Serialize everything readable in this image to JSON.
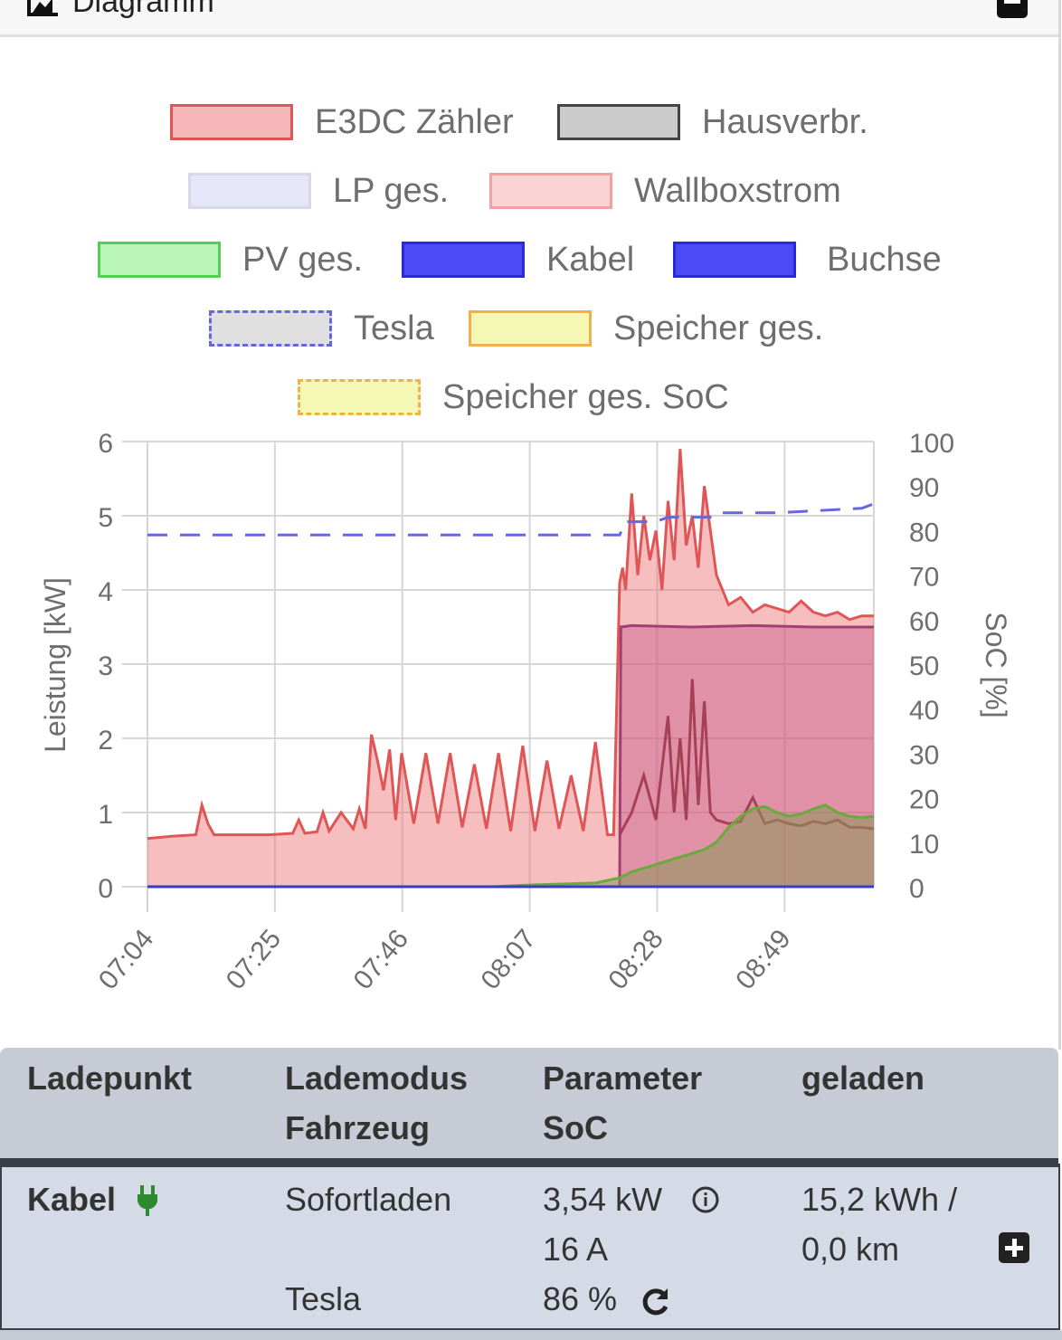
{
  "header": {
    "title": "Diagramm",
    "icon": "chart-icon",
    "collapse_icon": "minus-square-icon"
  },
  "legend": [
    {
      "label": "E3DC Zähler",
      "fill": "#f4b6b6",
      "stroke": "#e05555",
      "dashed": false
    },
    {
      "label": "Hausverbr.",
      "fill": "#cccccc",
      "stroke": "#444444",
      "dashed": false
    },
    {
      "label": "LP ges.",
      "fill": "#e6e6fa",
      "stroke": "#d8d8e8",
      "dashed": false
    },
    {
      "label": "Wallboxstrom",
      "fill": "#f8d4d4",
      "stroke": "#f2a0a0",
      "dashed": false
    },
    {
      "label": "PV ges.",
      "fill": "#b9f5b9",
      "stroke": "#55cc55",
      "dashed": false
    },
    {
      "label": "Kabel",
      "fill": "#4a4af7",
      "stroke": "#2a2ad0",
      "dashed": false
    },
    {
      "label": "Buchse",
      "fill": "#4a4af7",
      "stroke": "#2a2ad0",
      "dashed": false
    },
    {
      "label": "Tesla",
      "fill": "#e0e0e0",
      "stroke": "#6666dd",
      "dashed": true
    },
    {
      "label": "Speicher ges.",
      "fill": "#f5f8b5",
      "stroke": "#f0b050",
      "dashed": false
    },
    {
      "label": "Speicher ges. SoC",
      "fill": "#f5f8b5",
      "stroke": "#f0b050",
      "dashed": true
    }
  ],
  "chart_data": {
    "type": "area",
    "ylabel": "Leistung [kW]",
    "y2label": "SoC [%]",
    "ylim": [
      0,
      6
    ],
    "y2lim": [
      0,
      100
    ],
    "yticks": [
      0,
      1,
      2,
      3,
      4,
      5,
      6
    ],
    "y2ticks": [
      0,
      10,
      20,
      30,
      40,
      50,
      60,
      70,
      80,
      90,
      100
    ],
    "xticks": [
      "07:04",
      "07:25",
      "07:46",
      "08:07",
      "08:28",
      "08:49"
    ],
    "xlim": [
      0,
      120
    ],
    "grid": true,
    "series": [
      {
        "name": "E3DC Zähler",
        "axis": "left",
        "color": "#e05555",
        "fill": "rgba(235,110,110,0.45)",
        "x": [
          0,
          4,
          8,
          9,
          10,
          11,
          12,
          16,
          20,
          24,
          25,
          26,
          28,
          29,
          30,
          32,
          34,
          35,
          36,
          37,
          38,
          39,
          40,
          41,
          42,
          44,
          46,
          48,
          50,
          52,
          54,
          56,
          58,
          60,
          62,
          64,
          66,
          68,
          70,
          72,
          74,
          76,
          77,
          78,
          78.5,
          79,
          80,
          81,
          82,
          83,
          84,
          85,
          86,
          87,
          88,
          89,
          90,
          91,
          92,
          94,
          96,
          98,
          100,
          102,
          104,
          106,
          108,
          110,
          112,
          114,
          116,
          118,
          120
        ],
        "y": [
          0.65,
          0.68,
          0.7,
          1.1,
          0.85,
          0.7,
          0.7,
          0.7,
          0.7,
          0.72,
          0.9,
          0.72,
          0.74,
          1.0,
          0.75,
          1.0,
          0.78,
          1.05,
          0.78,
          2.05,
          1.7,
          1.3,
          1.85,
          0.9,
          1.8,
          0.85,
          1.8,
          0.85,
          1.8,
          0.8,
          1.65,
          0.78,
          1.8,
          0.75,
          1.9,
          0.75,
          1.7,
          0.78,
          1.5,
          0.75,
          1.95,
          0.7,
          0.7,
          4.1,
          4.3,
          4.0,
          5.3,
          4.2,
          5.0,
          4.4,
          4.8,
          4.0,
          5.2,
          4.4,
          5.9,
          4.6,
          5.0,
          4.3,
          5.4,
          4.2,
          3.8,
          3.9,
          3.7,
          3.8,
          3.75,
          3.7,
          3.85,
          3.7,
          3.65,
          3.7,
          3.6,
          3.65,
          3.65
        ]
      },
      {
        "name": "Hausverbr.",
        "axis": "left",
        "color": "#8a2a2a",
        "fill": "none",
        "x": [
          78,
          80,
          82,
          84,
          86,
          87,
          88,
          89,
          90,
          91,
          92,
          93,
          94,
          96,
          98,
          100,
          102,
          104,
          106,
          108,
          110,
          112,
          114,
          116,
          118,
          120
        ],
        "y": [
          0.7,
          1.0,
          1.5,
          0.9,
          2.3,
          1.0,
          2.0,
          0.9,
          2.8,
          1.1,
          2.5,
          1.0,
          0.9,
          0.85,
          0.88,
          1.2,
          0.85,
          0.9,
          0.85,
          0.82,
          0.88,
          0.85,
          0.9,
          0.8,
          0.8,
          0.78
        ]
      },
      {
        "name": "Wallboxstrom",
        "axis": "left",
        "color": "#a04070",
        "fill": "rgba(200,90,140,0.45)",
        "x": [
          78,
          78.2,
          80,
          90,
          100,
          110,
          120
        ],
        "y": [
          0,
          3.5,
          3.52,
          3.5,
          3.52,
          3.5,
          3.5
        ]
      },
      {
        "name": "PV ges.",
        "axis": "left",
        "color": "#6aaa3a",
        "fill": "rgba(140,150,90,0.55)",
        "x": [
          57,
          62,
          66,
          70,
          74,
          78,
          80,
          82,
          84,
          86,
          88,
          90,
          92,
          94,
          96,
          98,
          100,
          102,
          104,
          106,
          108,
          110,
          112,
          114,
          116,
          118,
          120
        ],
        "y": [
          0,
          0.02,
          0.03,
          0.04,
          0.05,
          0.12,
          0.2,
          0.25,
          0.3,
          0.35,
          0.4,
          0.45,
          0.5,
          0.6,
          0.8,
          0.95,
          1.05,
          1.08,
          1.0,
          0.95,
          0.98,
          1.05,
          1.1,
          1.0,
          0.95,
          0.93,
          0.95
        ]
      },
      {
        "name": "Tesla",
        "axis": "right",
        "color": "#6666dd",
        "fill": "none",
        "dashed": true,
        "x": [
          0,
          78,
          79,
          84,
          86,
          94,
          95,
          104,
          118,
          120
        ],
        "y": [
          79,
          79,
          82,
          82,
          83,
          83,
          84,
          84,
          85,
          86
        ]
      },
      {
        "name": "Kabel",
        "axis": "left",
        "color": "#3a3acc",
        "fill": "none",
        "x": [
          78,
          120
        ],
        "y": [
          0,
          0
        ]
      }
    ]
  },
  "table": {
    "headers": [
      {
        "line1": "Ladepunkt",
        "line2": ""
      },
      {
        "line1": "Lademodus",
        "line2": "Fahrzeug"
      },
      {
        "line1": "Parameter",
        "line2": "SoC"
      },
      {
        "line1": "geladen",
        "line2": ""
      }
    ],
    "row": {
      "ladepunkt": "Kabel",
      "ladepunkt_icon": "plug-icon",
      "lademodus": "Sofortladen",
      "fahrzeug": "Tesla",
      "leistung": "3,54 kW",
      "info_icon": "info-icon",
      "strom": "16 A",
      "soc": "86 %",
      "refresh_icon": "refresh-icon",
      "geladen_energie": "15,2 kWh /",
      "geladen_km": "0,0 km",
      "expand_icon": "plus-square-icon"
    }
  }
}
